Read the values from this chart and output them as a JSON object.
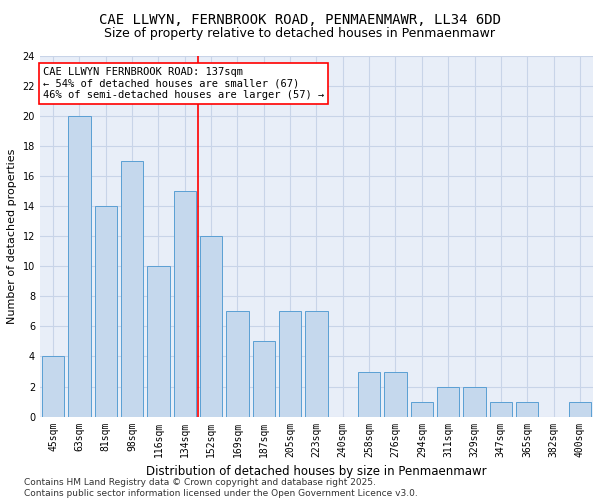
{
  "title1": "CAE LLWYN, FERNBROOK ROAD, PENMAENMAWR, LL34 6DD",
  "title2": "Size of property relative to detached houses in Penmaenmawr",
  "xlabel": "Distribution of detached houses by size in Penmaenmawr",
  "ylabel": "Number of detached properties",
  "categories": [
    "45sqm",
    "63sqm",
    "81sqm",
    "98sqm",
    "116sqm",
    "134sqm",
    "152sqm",
    "169sqm",
    "187sqm",
    "205sqm",
    "223sqm",
    "240sqm",
    "258sqm",
    "276sqm",
    "294sqm",
    "311sqm",
    "329sqm",
    "347sqm",
    "365sqm",
    "382sqm",
    "400sqm"
  ],
  "values": [
    4,
    20,
    14,
    17,
    10,
    15,
    12,
    7,
    5,
    7,
    7,
    0,
    3,
    3,
    1,
    2,
    2,
    1,
    1,
    0,
    1
  ],
  "bar_color": "#c5d8ed",
  "bar_edge_color": "#5a9fd4",
  "vline_x_index": 5,
  "vline_color": "red",
  "annotation_text": "CAE LLWYN FERNBROOK ROAD: 137sqm\n← 54% of detached houses are smaller (67)\n46% of semi-detached houses are larger (57) →",
  "annotation_box_color": "white",
  "annotation_box_edge": "red",
  "ylim": [
    0,
    24
  ],
  "yticks": [
    0,
    2,
    4,
    6,
    8,
    10,
    12,
    14,
    16,
    18,
    20,
    22,
    24
  ],
  "grid_color": "#c8d4e8",
  "bg_color": "#e8eef8",
  "footer": "Contains HM Land Registry data © Crown copyright and database right 2025.\nContains public sector information licensed under the Open Government Licence v3.0.",
  "title_fontsize": 10,
  "subtitle_fontsize": 9,
  "xlabel_fontsize": 8.5,
  "ylabel_fontsize": 8,
  "tick_fontsize": 7,
  "annot_fontsize": 7.5,
  "footer_fontsize": 6.5
}
